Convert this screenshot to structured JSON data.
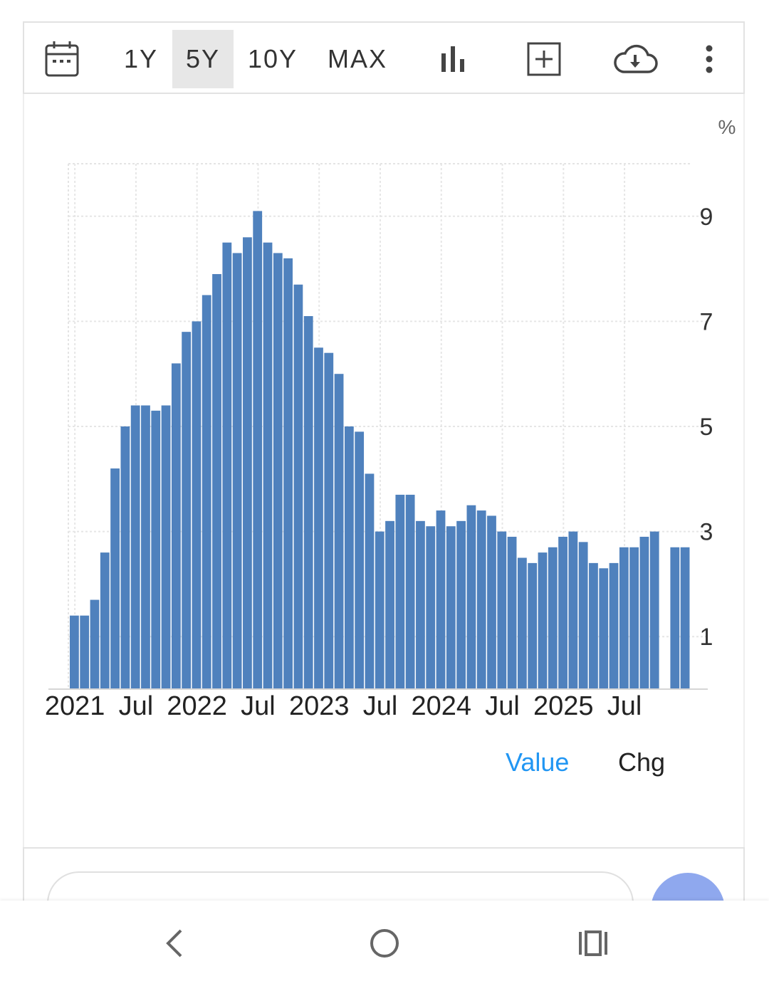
{
  "toolbar": {
    "ranges": [
      "1Y",
      "5Y",
      "10Y",
      "MAX"
    ],
    "active_range": "5Y",
    "icons": [
      "calendar-icon",
      "bar-chart-icon",
      "compare-add-icon",
      "cloud-download-icon",
      "more-vert-icon"
    ]
  },
  "chart_data": {
    "type": "bar",
    "unit_label": "%",
    "x_tick_labels": [
      "2021",
      "Jul",
      "2022",
      "Jul",
      "2023",
      "Jul",
      "2024",
      "Jul",
      "2025",
      "Jul"
    ],
    "y_tick_labels": [
      "1",
      "3",
      "5",
      "7",
      "9"
    ],
    "ylim": [
      0,
      10
    ],
    "y_axis_side": "right",
    "grid": true,
    "series": [
      {
        "start": "2021-01",
        "values": [
          1.4,
          1.4,
          1.7,
          2.6,
          4.2,
          5.0,
          5.4,
          5.4,
          5.3,
          5.4,
          6.2,
          6.8,
          7.0,
          7.5,
          7.9,
          8.5,
          8.3,
          8.6,
          9.1,
          8.5,
          8.3,
          8.2,
          7.7,
          7.1,
          6.5,
          6.4,
          6.0,
          5.0,
          4.9,
          4.1,
          3.0,
          3.2,
          3.7,
          3.7,
          3.2,
          3.1,
          3.4,
          3.1,
          3.2,
          3.5,
          3.4,
          3.3,
          3.0,
          2.9,
          2.5,
          2.4,
          2.6,
          2.7,
          2.9,
          3.0,
          2.8,
          2.4,
          2.3,
          2.4,
          2.7,
          2.7,
          2.9,
          3.0,
          null,
          2.7,
          2.7
        ],
        "color": "#4f81bd"
      }
    ]
  },
  "legend": {
    "value_label": "Value",
    "chg_label": "Chg",
    "active": "Value",
    "active_color": "#2196f3"
  },
  "nav": {
    "icons": [
      "back-icon",
      "home-icon",
      "recents-icon"
    ]
  }
}
